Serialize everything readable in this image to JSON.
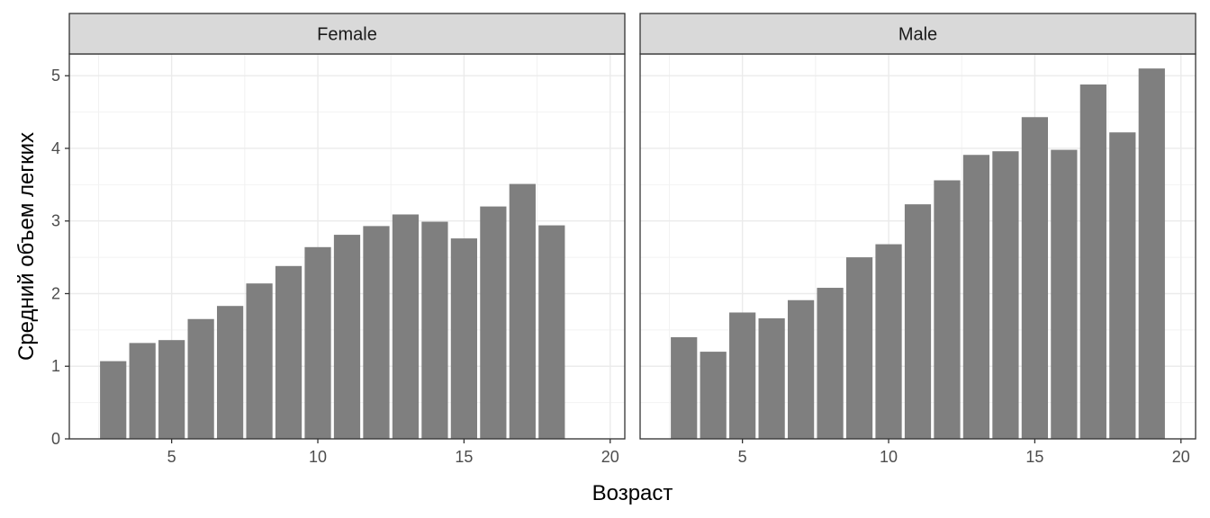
{
  "chart_data": {
    "type": "bar",
    "xlabel": "Возраст",
    "ylabel": "Средний объем легких",
    "ylim": [
      0,
      5.3
    ],
    "xlim": [
      1.5,
      20.5
    ],
    "x_ticks": [
      5,
      10,
      15,
      20
    ],
    "y_ticks": [
      0,
      1,
      2,
      3,
      4,
      5
    ],
    "grid": true,
    "bar_color": "#7f7f7f",
    "panels": [
      {
        "name": "Female",
        "x": [
          3,
          4,
          5,
          6,
          7,
          8,
          9,
          10,
          11,
          12,
          13,
          14,
          15,
          16,
          17,
          18
        ],
        "values": [
          1.07,
          1.32,
          1.36,
          1.65,
          1.83,
          2.14,
          2.38,
          2.64,
          2.81,
          2.93,
          3.09,
          2.99,
          2.76,
          3.2,
          3.51,
          2.94
        ]
      },
      {
        "name": "Male",
        "x": [
          3,
          4,
          5,
          6,
          7,
          8,
          9,
          10,
          11,
          12,
          13,
          14,
          15,
          16,
          17,
          18,
          19
        ],
        "values": [
          1.4,
          1.2,
          1.74,
          1.66,
          1.91,
          2.08,
          2.5,
          2.68,
          3.23,
          3.56,
          3.91,
          3.96,
          4.43,
          3.98,
          4.88,
          4.22,
          5.1
        ]
      }
    ]
  }
}
